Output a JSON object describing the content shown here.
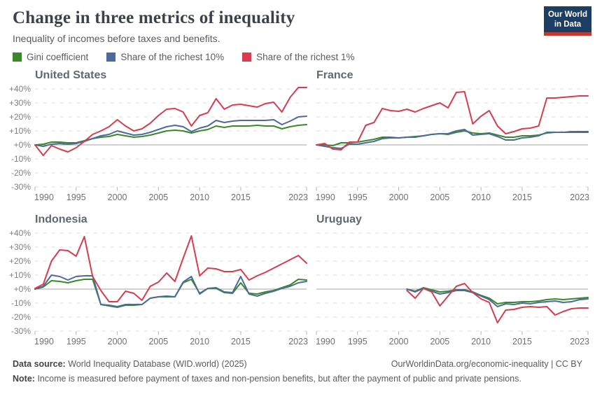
{
  "header": {
    "title": "Change in three metrics of inequality",
    "subtitle": "Inequality of incomes before taxes and benefits.",
    "logo": {
      "line1": "Our World",
      "line2": "in Data",
      "bg_color": "#1d3d63",
      "stripe_color": "#c4392f"
    }
  },
  "colors": {
    "gini": "#3a8829",
    "top10": "#4c6a9c",
    "top1": "#d73c4f"
  },
  "legend": {
    "items": [
      {
        "label": "Gini coefficient",
        "color_key": "gini"
      },
      {
        "label": "Share of the richest 10%",
        "color_key": "top10"
      },
      {
        "label": "Share of the richest 1%",
        "color_key": "top1"
      }
    ]
  },
  "axis": {
    "x_ticks": [
      1990,
      1995,
      2000,
      2005,
      2010,
      2015,
      2023
    ],
    "y_ticks": [
      40,
      30,
      20,
      10,
      0,
      -10,
      -20,
      -30
    ],
    "y_tick_labels": [
      "+40%",
      "+30%",
      "+20%",
      "+10%",
      "+0%",
      "-10%",
      "-20%",
      "-30%"
    ]
  },
  "chart_data": [
    {
      "type": "line",
      "title": "United States",
      "x_domain": [
        1990,
        2023
      ],
      "x_start": 1990,
      "ylim": [
        -30,
        40
      ],
      "y_axis": true,
      "series": [
        {
          "name": "Gini coefficient",
          "color_key": "gini",
          "values": [
            0,
            0.5,
            2,
            2,
            1.5,
            1.5,
            3,
            4.5,
            5.5,
            6,
            7.5,
            6.5,
            5.5,
            6,
            7,
            8.5,
            10,
            10.5,
            10,
            8.5,
            10,
            11,
            13.5,
            12.5,
            13.5,
            13.5,
            13.5,
            14,
            13.5,
            13.5,
            11.5,
            13,
            14,
            14.5
          ]
        },
        {
          "name": "Share of the richest 10%",
          "color_key": "top10",
          "values": [
            0,
            -1,
            0.5,
            1,
            0.5,
            1,
            2.5,
            4.5,
            6.5,
            7.5,
            10,
            8.5,
            7,
            7.5,
            9,
            11,
            13,
            14,
            13,
            9.5,
            12,
            13.5,
            17.5,
            16,
            17,
            17.5,
            17.5,
            17.5,
            17.5,
            18,
            14.5,
            17,
            20,
            20.5
          ]
        },
        {
          "name": "Share of the richest 1%",
          "color_key": "top1",
          "values": [
            0,
            -7.5,
            -0.5,
            -3,
            -5,
            -2,
            2.5,
            7.5,
            10,
            13,
            18,
            13.5,
            10,
            11.5,
            15.5,
            21,
            25.5,
            26,
            23.5,
            13.5,
            21,
            23,
            33,
            25.5,
            28.5,
            29,
            28,
            27,
            29.5,
            30.5,
            23.5,
            34,
            41,
            41
          ]
        }
      ]
    },
    {
      "type": "line",
      "title": "France",
      "x_domain": [
        1990,
        2023
      ],
      "x_start": 1990,
      "ylim": [
        -30,
        40
      ],
      "y_axis": false,
      "series": [
        {
          "name": "Gini coefficient",
          "color_key": "gini",
          "values": [
            0,
            0,
            -0.5,
            1.5,
            1.5,
            2,
            3,
            4,
            5.5,
            5.5,
            5,
            5.5,
            6,
            6.5,
            7.5,
            8,
            7.5,
            9,
            10,
            8.5,
            8,
            8.5,
            7,
            5.5,
            5.5,
            6.5,
            6.5,
            7,
            8.5,
            9,
            9,
            9.5,
            9.5,
            9.5
          ]
        },
        {
          "name": "Share of the richest 10%",
          "color_key": "top10",
          "values": [
            0,
            -1,
            -2,
            -2.5,
            0.5,
            0.5,
            1.5,
            2.5,
            4.5,
            5,
            5,
            5.5,
            5.5,
            6.5,
            7.5,
            8,
            8,
            10,
            11,
            7,
            7.5,
            8,
            6,
            3.5,
            3.5,
            5,
            5.5,
            6.5,
            9,
            9,
            9,
            9,
            9,
            9
          ]
        },
        {
          "name": "Share of the richest 1%",
          "color_key": "top1",
          "values": [
            0,
            1,
            -3,
            -3.5,
            2,
            2,
            14,
            16,
            26,
            24.5,
            24,
            25.5,
            23.5,
            26,
            28,
            30,
            26.5,
            37.5,
            38,
            15,
            20.5,
            24.5,
            13.5,
            8,
            9.5,
            11.5,
            12,
            13.5,
            33.5,
            33.5,
            34,
            34.5,
            35,
            35
          ]
        }
      ]
    },
    {
      "type": "line",
      "title": "Indonesia",
      "x_domain": [
        1990,
        2023
      ],
      "x_start": 1990,
      "ylim": [
        -30,
        40
      ],
      "y_axis": true,
      "series": [
        {
          "name": "Gini coefficient",
          "color_key": "gini",
          "values": [
            0,
            1.5,
            6,
            5.5,
            4.5,
            6,
            7,
            7,
            -11,
            -12,
            -13,
            -11.5,
            -11.5,
            -11,
            -6.5,
            -5.5,
            -5.5,
            -5.5,
            4.5,
            7,
            -3,
            0.5,
            0.5,
            -2.5,
            -3,
            4.5,
            -3,
            -3.5,
            -2,
            -1,
            1,
            3,
            7,
            6.5
          ]
        },
        {
          "name": "Share of the richest 10%",
          "color_key": "top10",
          "values": [
            0,
            2,
            10,
            9,
            6.5,
            9,
            9.5,
            9.5,
            -11,
            -11.5,
            -12.5,
            -11,
            -11,
            -11,
            -6.5,
            -5.5,
            -5,
            -5.5,
            5,
            9,
            -3.5,
            0.5,
            1,
            -2,
            -2.5,
            9,
            -3.5,
            -5,
            -3,
            -1.5,
            0.5,
            2,
            4.5,
            5.5
          ]
        },
        {
          "name": "Share of the richest 1%",
          "color_key": "top1",
          "values": [
            0.5,
            3.5,
            20,
            28,
            27.5,
            23.5,
            37.5,
            9,
            -1,
            -9,
            -9,
            -1.5,
            -3,
            -8,
            2,
            5,
            11.5,
            5.5,
            22,
            38,
            9.5,
            15,
            14.5,
            12.5,
            12.5,
            14,
            6.5,
            9.5,
            12,
            15,
            18,
            21,
            24,
            18.5
          ]
        }
      ]
    },
    {
      "type": "line",
      "title": "Uruguay",
      "x_domain": [
        1990,
        2023
      ],
      "x_start": 2001,
      "ylim": [
        -30,
        40
      ],
      "y_axis": false,
      "series": [
        {
          "name": "Gini coefficient",
          "color_key": "gini",
          "values": [
            0,
            -1.5,
            1,
            -0.5,
            -2,
            -1.5,
            -0.5,
            -0.5,
            -2,
            -4.5,
            -6.5,
            -10.5,
            -9.5,
            -9.5,
            -9,
            -9,
            -8.5,
            -7.5,
            -7,
            -7.5,
            -7,
            -6.5,
            -6
          ]
        },
        {
          "name": "Share of the richest 10%",
          "color_key": "top10",
          "values": [
            0,
            -2,
            0.5,
            -1.5,
            -3.5,
            -2.5,
            -1,
            -1,
            -2.5,
            -5,
            -7.5,
            -12.5,
            -10.5,
            -11,
            -10,
            -10.5,
            -9.5,
            -9,
            -8.5,
            -9.5,
            -9,
            -7.5,
            -7
          ]
        },
        {
          "name": "Share of the richest 1%",
          "color_key": "top1",
          "values": [
            -1,
            -6.5,
            0.5,
            -2,
            -12,
            -5,
            2,
            4,
            -2.5,
            -7,
            -9.5,
            -24,
            -15,
            -14.5,
            -13,
            -12.5,
            -13,
            -12.5,
            -18.5,
            -16,
            -14,
            -13.5,
            -13.5
          ]
        }
      ]
    }
  ],
  "footer": {
    "source_label": "Data source:",
    "source_value": "World Inequality Database (WID.world) (2025)",
    "credit": "OurWorldinData.org/economic-inequality | CC BY",
    "note_label": "Note:",
    "note_text": "Income is measured before payment of taxes and non-pension benefits, but after the payment of public and private pensions."
  }
}
